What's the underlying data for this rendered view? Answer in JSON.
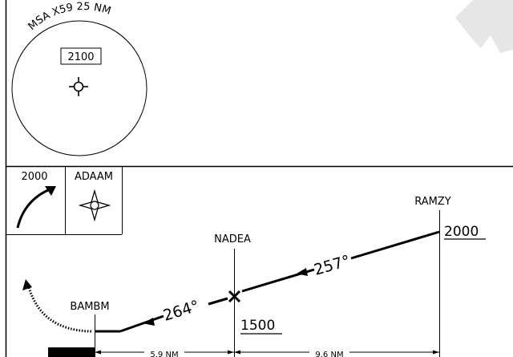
{
  "msa": {
    "label": "MSA X59 25 NM",
    "altitude": "2100"
  },
  "missed_approach": {
    "altitude": "2000",
    "fix": "ADAAM"
  },
  "profile": {
    "fixes": [
      {
        "name": "RAMZY",
        "altitude": "2000"
      },
      {
        "name": "NADEA",
        "altitude": "1500"
      },
      {
        "name": "BAMBM",
        "altitude": ""
      }
    ],
    "courses": [
      "257°",
      "264°"
    ],
    "distances": [
      "5.9 NM",
      "9.6 NM"
    ]
  },
  "colors": {
    "ink": "#000000",
    "background": "#ffffff",
    "watermark": "#e6e6e6"
  }
}
